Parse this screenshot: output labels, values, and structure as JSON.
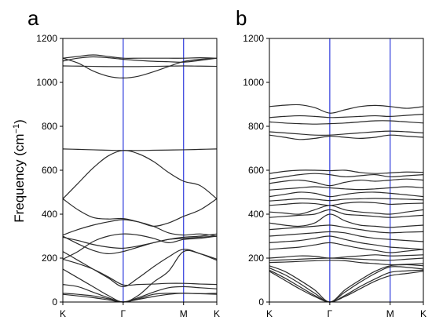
{
  "chart_data": [
    {
      "type": "line",
      "panel_label": "a",
      "ylabel_text": "Frequency (cm",
      "ylabel_sup": "−1",
      "ylabel_close": ")",
      "ylim": [
        0,
        1200
      ],
      "yticks": [
        0,
        200,
        400,
        600,
        800,
        1000,
        1200
      ],
      "x_ticks": [
        {
          "pos": 0,
          "label": "K"
        },
        {
          "pos": 1,
          "label": "Γ"
        },
        {
          "pos": 2,
          "label": "M"
        },
        {
          "pos": 2.55,
          "label": "K"
        }
      ],
      "x_range": [
        0,
        2.55
      ],
      "symmetry_lines": [
        1,
        2
      ],
      "zero_line": 0,
      "grid": false,
      "series_x": [
        0,
        0.25,
        0.5,
        0.75,
        1,
        1.25,
        1.5,
        1.75,
        2,
        2.275,
        2.55
      ],
      "series": [
        {
          "values": [
            1110,
            1118,
            1125,
            1118,
            1110,
            1110,
            1110,
            1110,
            1110,
            1112,
            1110
          ]
        },
        {
          "values": [
            1110,
            1088,
            1052,
            1028,
            1020,
            1028,
            1048,
            1072,
            1095,
            1105,
            1110
          ]
        },
        {
          "values": [
            1097,
            1110,
            1116,
            1112,
            1105,
            1100,
            1096,
            1094,
            1092,
            1100,
            1110
          ]
        },
        {
          "values": [
            1075,
            1074,
            1073,
            1072,
            1072,
            1072,
            1073,
            1074,
            1075,
            1074,
            1073
          ]
        },
        {
          "values": [
            697,
            695,
            693,
            691,
            690,
            690,
            691,
            692,
            693,
            695,
            697
          ]
        },
        {
          "values": [
            470,
            540,
            610,
            665,
            690,
            675,
            640,
            590,
            550,
            530,
            470
          ]
        },
        {
          "values": [
            470,
            420,
            385,
            378,
            380,
            365,
            345,
            360,
            390,
            420,
            470
          ]
        },
        {
          "values": [
            305,
            330,
            350,
            365,
            375,
            365,
            345,
            315,
            305,
            310,
            300
          ]
        },
        {
          "values": [
            295,
            280,
            262,
            250,
            245,
            255,
            270,
            285,
            295,
            300,
            310
          ]
        },
        {
          "values": [
            300,
            265,
            235,
            220,
            230,
            250,
            270,
            285,
            290,
            295,
            300
          ]
        },
        {
          "values": [
            195,
            230,
            275,
            300,
            310,
            305,
            290,
            270,
            285,
            290,
            300
          ]
        },
        {
          "values": [
            230,
            190,
            150,
            110,
            70,
            110,
            160,
            205,
            240,
            220,
            190
          ]
        },
        {
          "values": [
            195,
            175,
            150,
            115,
            78,
            80,
            82,
            85,
            85,
            82,
            80
          ]
        },
        {
          "values": [
            150,
            110,
            70,
            30,
            0,
            30,
            90,
            140,
            230,
            220,
            195
          ]
        },
        {
          "values": [
            80,
            70,
            45,
            20,
            0,
            20,
            45,
            65,
            70,
            65,
            60
          ]
        },
        {
          "values": [
            40,
            35,
            28,
            15,
            0,
            15,
            35,
            40,
            40,
            38,
            35
          ]
        },
        {
          "values": [
            35,
            28,
            20,
            10,
            0,
            12,
            25,
            35,
            40,
            38,
            40
          ]
        }
      ]
    },
    {
      "type": "line",
      "panel_label": "b",
      "ylim": [
        0,
        1200
      ],
      "yticks": [
        0,
        200,
        400,
        600,
        800,
        1000,
        1200
      ],
      "x_ticks": [
        {
          "pos": 0,
          "label": "K"
        },
        {
          "pos": 1,
          "label": "Γ"
        },
        {
          "pos": 2,
          "label": "M"
        },
        {
          "pos": 2.55,
          "label": "K"
        }
      ],
      "x_range": [
        0,
        2.55
      ],
      "symmetry_lines": [
        1,
        2
      ],
      "zero_line": 0,
      "grid": false,
      "series_x": [
        0,
        0.25,
        0.5,
        0.75,
        1,
        1.25,
        1.5,
        1.75,
        2,
        2.275,
        2.55
      ],
      "series": [
        {
          "values": [
            890,
            896,
            898,
            885,
            860,
            875,
            890,
            895,
            890,
            882,
            890
          ]
        },
        {
          "values": [
            840,
            845,
            848,
            845,
            840,
            842,
            845,
            848,
            845,
            850,
            855
          ]
        },
        {
          "values": [
            820,
            815,
            812,
            810,
            812,
            815,
            820,
            825,
            825,
            820,
            815
          ]
        },
        {
          "values": [
            775,
            770,
            765,
            760,
            760,
            765,
            770,
            775,
            778,
            775,
            770
          ]
        },
        {
          "values": [
            760,
            750,
            740,
            745,
            755,
            750,
            745,
            750,
            760,
            755,
            750
          ]
        },
        {
          "values": [
            585,
            595,
            600,
            600,
            598,
            600,
            590,
            585,
            588,
            592,
            590
          ]
        },
        {
          "values": [
            560,
            570,
            580,
            585,
            580,
            570,
            575,
            580,
            570,
            575,
            580
          ]
        },
        {
          "values": [
            540,
            550,
            555,
            545,
            530,
            545,
            555,
            550,
            555,
            560,
            555
          ]
        },
        {
          "values": [
            510,
            515,
            520,
            525,
            520,
            515,
            512,
            515,
            520,
            525,
            520
          ]
        },
        {
          "values": [
            480,
            490,
            500,
            495,
            480,
            490,
            498,
            500,
            495,
            488,
            480
          ]
        },
        {
          "values": [
            460,
            465,
            470,
            468,
            462,
            468,
            470,
            472,
            470,
            468,
            465
          ]
        },
        {
          "values": [
            440,
            445,
            450,
            448,
            440,
            450,
            455,
            452,
            445,
            448,
            450
          ]
        },
        {
          "values": [
            410,
            405,
            400,
            420,
            440,
            420,
            410,
            405,
            400,
            410,
            420
          ]
        },
        {
          "values": [
            385,
            390,
            395,
            400,
            420,
            400,
            395,
            390,
            385,
            390,
            395
          ]
        },
        {
          "values": [
            360,
            350,
            345,
            360,
            400,
            370,
            350,
            345,
            340,
            345,
            350
          ]
        },
        {
          "values": [
            330,
            335,
            340,
            345,
            350,
            340,
            330,
            320,
            315,
            318,
            320
          ]
        },
        {
          "values": [
            300,
            305,
            310,
            315,
            320,
            315,
            300,
            290,
            285,
            280,
            275
          ]
        },
        {
          "values": [
            270,
            275,
            280,
            290,
            300,
            285,
            270,
            260,
            250,
            245,
            240
          ]
        },
        {
          "values": [
            240,
            245,
            250,
            260,
            270,
            258,
            245,
            235,
            225,
            232,
            240
          ]
        },
        {
          "values": [
            200,
            205,
            210,
            208,
            200,
            205,
            210,
            215,
            210,
            212,
            215
          ]
        },
        {
          "values": [
            190,
            192,
            195,
            198,
            200,
            198,
            195,
            192,
            190,
            195,
            200
          ]
        },
        {
          "values": [
            180,
            182,
            185,
            188,
            190,
            188,
            180,
            175,
            170,
            172,
            175
          ]
        },
        {
          "values": [
            165,
            140,
            100,
            55,
            0,
            55,
            100,
            140,
            165,
            170,
            165
          ]
        },
        {
          "values": [
            155,
            125,
            85,
            40,
            0,
            45,
            90,
            130,
            160,
            158,
            150
          ]
        },
        {
          "values": [
            145,
            110,
            70,
            30,
            0,
            30,
            70,
            105,
            135,
            142,
            145
          ]
        },
        {
          "values": [
            140,
            100,
            60,
            25,
            0,
            25,
            60,
            95,
            120,
            130,
            140
          ]
        }
      ]
    }
  ]
}
